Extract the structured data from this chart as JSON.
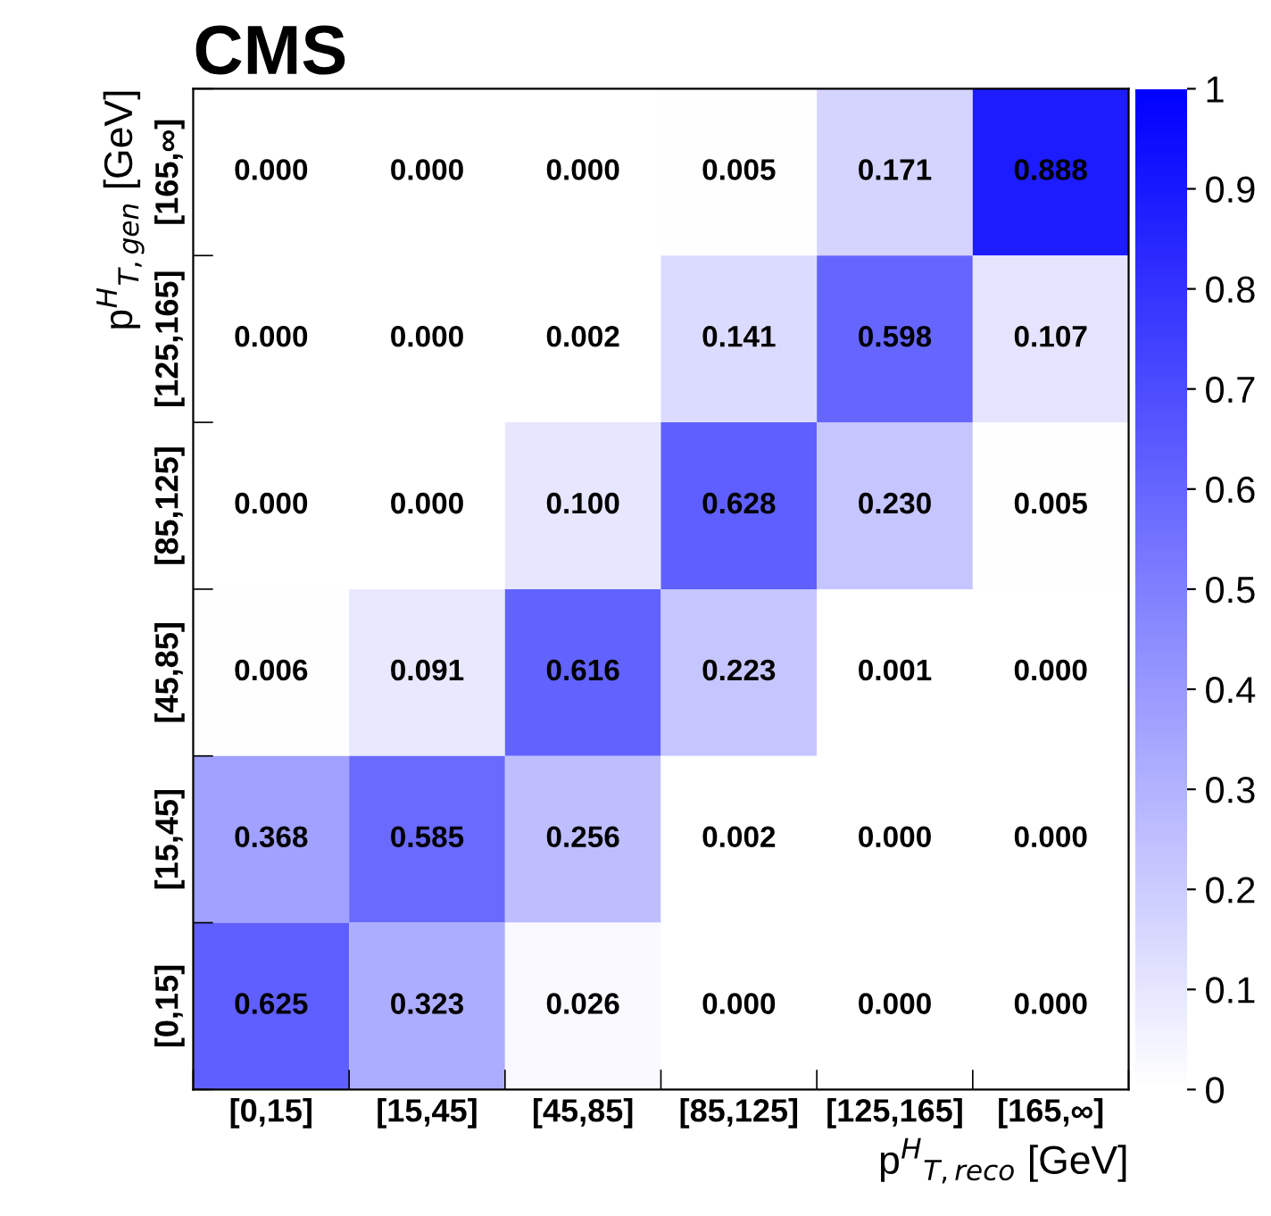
{
  "chart_data": {
    "type": "heatmap",
    "title": "CMS",
    "xlabel": "p$^{H}$$_{T,reco}$ [GeV]",
    "ylabel": "p$^{H}$$_{T,gen}$ [GeV]",
    "categories": [
      "[0,15]",
      "[15,45]",
      "[45,85]",
      "[85,125]",
      "[125,165]",
      "[165,∞]"
    ],
    "y_categories": [
      "[165,∞]",
      "[125,165]",
      "[85,125]",
      "[45,85]",
      "[15,45]",
      "[0,15]"
    ],
    "cells": [
      [
        0.0,
        0.0,
        0.0,
        0.005,
        0.171,
        0.888
      ],
      [
        0.0,
        0.0,
        0.002,
        0.141,
        0.598,
        0.107
      ],
      [
        0.0,
        0.0,
        0.1,
        0.628,
        0.23,
        0.005
      ],
      [
        0.006,
        0.091,
        0.616,
        0.223,
        0.001,
        0.0
      ],
      [
        0.368,
        0.585,
        0.256,
        0.002,
        0.0,
        0.0
      ],
      [
        0.625,
        0.323,
        0.026,
        0.0,
        0.0,
        0.0
      ]
    ],
    "cell_labels": [
      [
        "0.000",
        "0.000",
        "0.000",
        "0.005",
        "0.171",
        "0.888"
      ],
      [
        "0.000",
        "0.000",
        "0.002",
        "0.141",
        "0.598",
        "0.107"
      ],
      [
        "0.000",
        "0.000",
        "0.100",
        "0.628",
        "0.230",
        "0.005"
      ],
      [
        "0.006",
        "0.091",
        "0.616",
        "0.223",
        "0.001",
        "0.000"
      ],
      [
        "0.368",
        "0.585",
        "0.256",
        "0.002",
        "0.000",
        "0.000"
      ],
      [
        "0.625",
        "0.323",
        "0.026",
        "0.000",
        "0.000",
        "0.000"
      ]
    ],
    "clim": [
      0,
      1
    ],
    "cticks": [
      0,
      0.1,
      0.2,
      0.3,
      0.4,
      0.5,
      0.6,
      0.7,
      0.8,
      0.9,
      1
    ],
    "grid": false
  }
}
